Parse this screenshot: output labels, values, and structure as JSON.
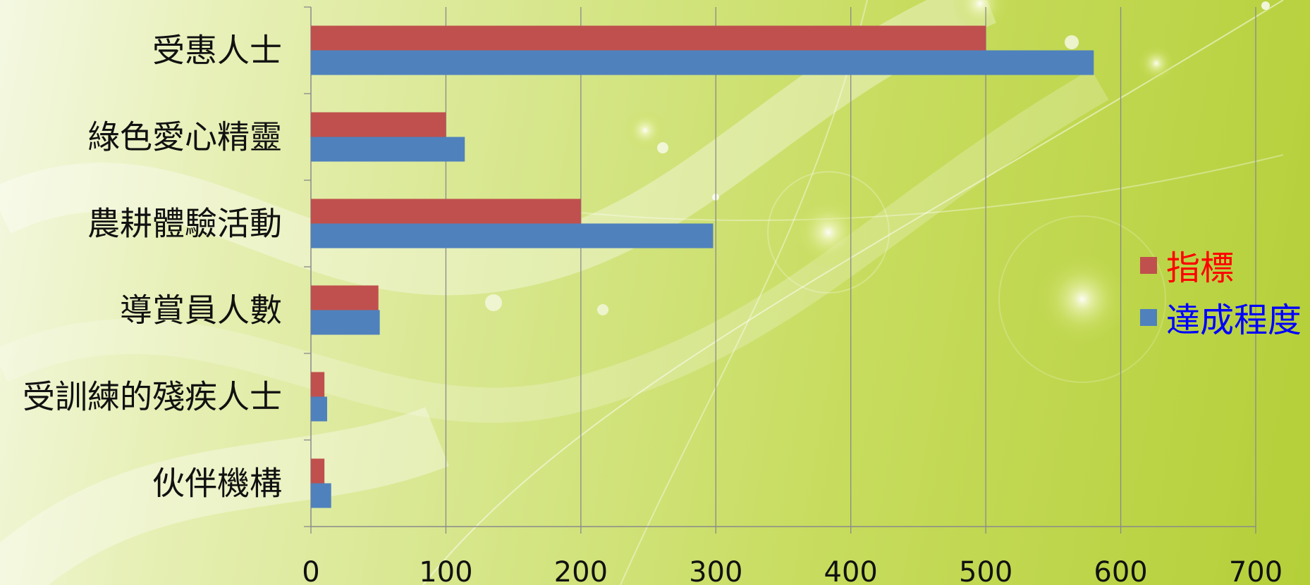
{
  "chart_data": {
    "type": "bar",
    "orientation": "horizontal",
    "categories": [
      "受惠人士",
      "綠色愛心精靈",
      "農耕體驗活動",
      "導賞員人數",
      "受訓練的殘疾人士",
      "伙伴機構"
    ],
    "series": [
      {
        "name": "指標",
        "color": "#c0504d",
        "values": [
          500,
          100,
          200,
          50,
          10,
          10
        ]
      },
      {
        "name": "達成程度",
        "color": "#4f81bd",
        "values": [
          580,
          114,
          298,
          51,
          12,
          15
        ]
      }
    ],
    "xlim": [
      0,
      700
    ],
    "xticks": [
      0,
      100,
      200,
      300,
      400,
      500,
      600,
      700
    ],
    "grid": true,
    "legend_position": "right",
    "legend_text_colors": [
      "#ff0000",
      "#0000ff"
    ],
    "title": "",
    "xlabel": "",
    "ylabel": ""
  }
}
